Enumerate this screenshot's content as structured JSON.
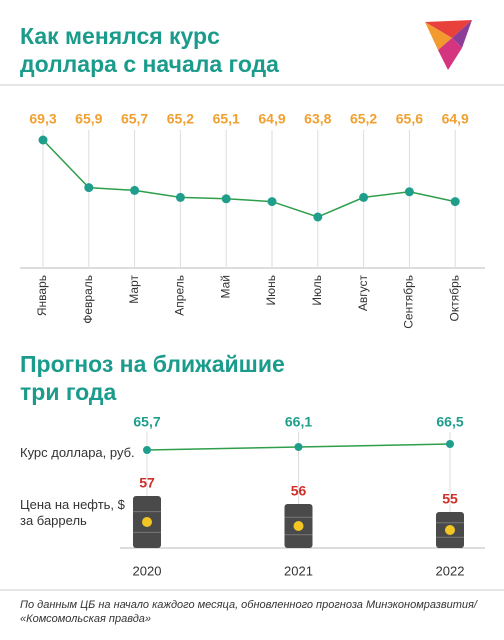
{
  "chart_data": [
    {
      "type": "line",
      "title": "Как менялся курс доллара с начала года",
      "categories": [
        "Январь",
        "Февраль",
        "Март",
        "Апрель",
        "Май",
        "Июнь",
        "Июль",
        "Август",
        "Сентябрь",
        "Октябрь"
      ],
      "values": [
        69.3,
        65.9,
        65.7,
        65.2,
        65.1,
        64.9,
        63.8,
        65.2,
        65.6,
        64.9
      ],
      "value_labels": [
        "69,3",
        "65,9",
        "65,7",
        "65,2",
        "65,1",
        "64,9",
        "63,8",
        "65,2",
        "65,6",
        "64,9"
      ],
      "color": "#2e9e4a",
      "label_color": "#f0a030",
      "grid": true
    },
    {
      "type": "combo",
      "title": "Прогноз на ближайшие три года",
      "categories": [
        "2020",
        "2021",
        "2022"
      ],
      "series": [
        {
          "name": "Курс доллара, руб.",
          "type": "line",
          "color": "#1f9e8c",
          "values": [
            65.7,
            66.1,
            66.5
          ],
          "value_labels": [
            "65,7",
            "66,1",
            "66,5"
          ]
        },
        {
          "name": "Цена на нефть, $ за баррель",
          "type": "bar",
          "color": "#4a4a4a",
          "label_color": "#d0302a",
          "values": [
            57,
            56,
            55
          ]
        }
      ],
      "grid": true
    },
    {
      "type": "note",
      "title": "По данным ЦБ на начало каждого месяца, обновленного прогноза Минэкономразвития/ «Комсомольская правда»"
    }
  ]
}
